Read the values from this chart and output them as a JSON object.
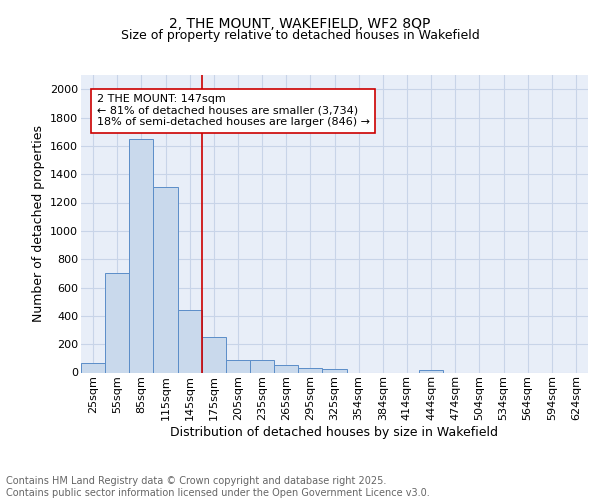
{
  "title_line1": "2, THE MOUNT, WAKEFIELD, WF2 8QP",
  "title_line2": "Size of property relative to detached houses in Wakefield",
  "xlabel": "Distribution of detached houses by size in Wakefield",
  "ylabel": "Number of detached properties",
  "categories": [
    "25sqm",
    "55sqm",
    "85sqm",
    "115sqm",
    "145sqm",
    "175sqm",
    "205sqm",
    "235sqm",
    "265sqm",
    "295sqm",
    "325sqm",
    "354sqm",
    "384sqm",
    "414sqm",
    "444sqm",
    "474sqm",
    "504sqm",
    "534sqm",
    "564sqm",
    "594sqm",
    "624sqm"
  ],
  "values": [
    65,
    700,
    1650,
    1310,
    440,
    250,
    90,
    85,
    50,
    30,
    25,
    0,
    0,
    0,
    20,
    0,
    0,
    0,
    0,
    0,
    0
  ],
  "bar_color": "#c9d9ec",
  "bar_edge_color": "#5b8dc8",
  "vline_x_index": 4.5,
  "vline_color": "#cc0000",
  "annotation_text": "2 THE MOUNT: 147sqm\n← 81% of detached houses are smaller (3,734)\n18% of semi-detached houses are larger (846) →",
  "annotation_box_color": "#ffffff",
  "annotation_box_edge_color": "#cc0000",
  "ylim": [
    0,
    2100
  ],
  "yticks": [
    0,
    200,
    400,
    600,
    800,
    1000,
    1200,
    1400,
    1600,
    1800,
    2000
  ],
  "grid_color": "#c8d4e8",
  "background_color": "#e8eef8",
  "footer_text": "Contains HM Land Registry data © Crown copyright and database right 2025.\nContains public sector information licensed under the Open Government Licence v3.0.",
  "title_fontsize": 10,
  "subtitle_fontsize": 9,
  "axis_label_fontsize": 9,
  "tick_fontsize": 8,
  "annotation_fontsize": 8,
  "footer_fontsize": 7
}
